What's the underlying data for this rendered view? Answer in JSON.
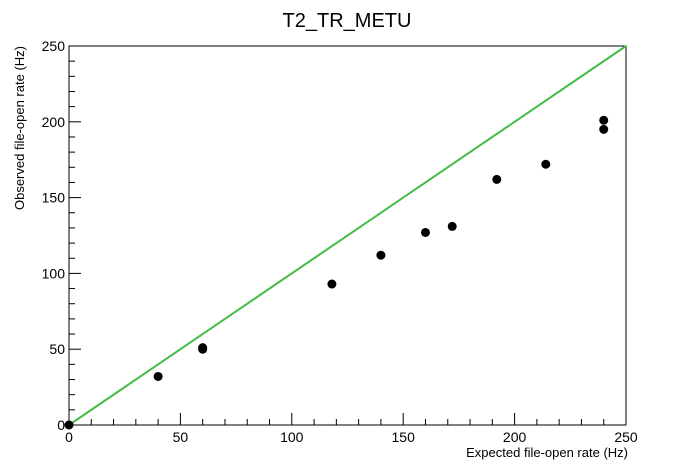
{
  "chart_data": {
    "type": "scatter",
    "title": "T2_TR_METU",
    "xlabel": "Expected file-open rate (Hz)",
    "ylabel": "Observed file-open rate (Hz)",
    "xlim": [
      0,
      250
    ],
    "ylim": [
      0,
      250
    ],
    "x_ticks": [
      0,
      50,
      100,
      150,
      200,
      250
    ],
    "y_ticks": [
      0,
      50,
      100,
      150,
      200,
      250
    ],
    "grid": false,
    "marker_color": "#000000",
    "reference_line": {
      "from": [
        0,
        0
      ],
      "to": [
        250,
        250
      ],
      "color": "#44bb44"
    },
    "points": [
      {
        "x": 0,
        "y": 0
      },
      {
        "x": 40,
        "y": 32
      },
      {
        "x": 60,
        "y": 50
      },
      {
        "x": 60,
        "y": 51
      },
      {
        "x": 118,
        "y": 93
      },
      {
        "x": 140,
        "y": 112
      },
      {
        "x": 160,
        "y": 127
      },
      {
        "x": 172,
        "y": 131
      },
      {
        "x": 192,
        "y": 162
      },
      {
        "x": 214,
        "y": 172
      },
      {
        "x": 240,
        "y": 195
      },
      {
        "x": 240,
        "y": 201
      }
    ]
  }
}
